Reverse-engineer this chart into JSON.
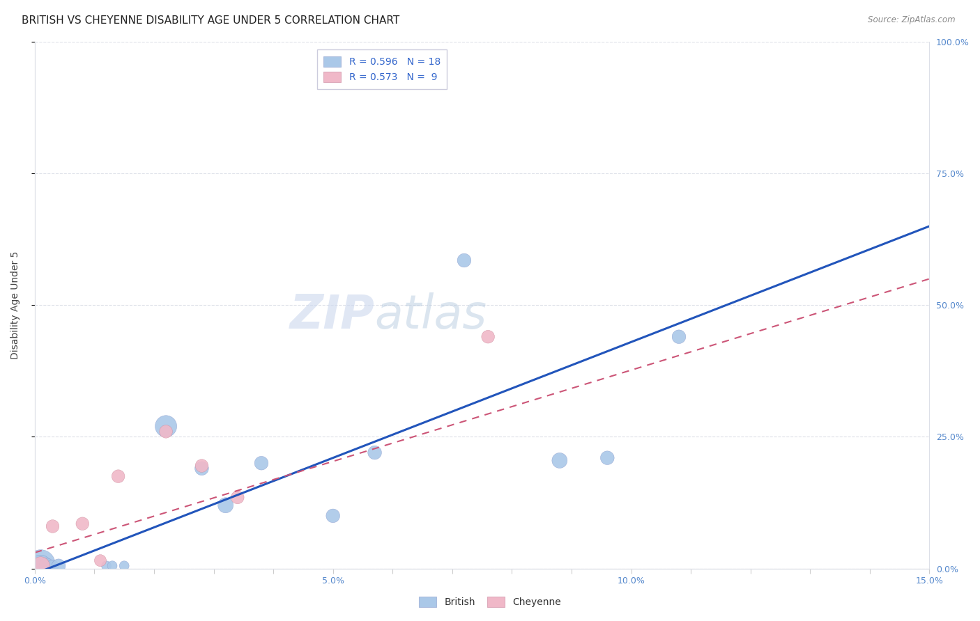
{
  "title": "BRITISH VS CHEYENNE DISABILITY AGE UNDER 5 CORRELATION CHART",
  "source": "Source: ZipAtlas.com",
  "ylabel": "Disability Age Under 5",
  "x_min": 0.0,
  "x_max": 0.15,
  "y_min": 0.0,
  "y_max": 1.0,
  "british_R": 0.596,
  "british_N": 18,
  "cheyenne_R": 0.573,
  "cheyenne_N": 9,
  "british_color": "#aac8e8",
  "british_line_color": "#2255bb",
  "cheyenne_color": "#f0b8c8",
  "cheyenne_line_color": "#cc5577",
  "british_points_x": [
    0.001,
    0.001,
    0.002,
    0.003,
    0.004,
    0.012,
    0.013,
    0.015,
    0.022,
    0.028,
    0.032,
    0.038,
    0.05,
    0.057,
    0.072,
    0.088,
    0.096,
    0.108
  ],
  "british_points_y": [
    0.008,
    0.005,
    0.005,
    0.005,
    0.005,
    0.005,
    0.005,
    0.005,
    0.27,
    0.19,
    0.12,
    0.2,
    0.1,
    0.22,
    0.585,
    0.205,
    0.21,
    0.44
  ],
  "british_sizes": [
    900,
    500,
    250,
    150,
    200,
    100,
    100,
    100,
    500,
    200,
    250,
    200,
    200,
    200,
    200,
    250,
    200,
    200
  ],
  "cheyenne_points_x": [
    0.001,
    0.003,
    0.008,
    0.011,
    0.014,
    0.022,
    0.028,
    0.034,
    0.076
  ],
  "cheyenne_points_y": [
    0.005,
    0.08,
    0.085,
    0.015,
    0.175,
    0.26,
    0.195,
    0.135,
    0.44
  ],
  "cheyenne_sizes": [
    350,
    180,
    180,
    150,
    180,
    180,
    180,
    180,
    180
  ],
  "british_trend": [
    -0.01,
    0.65
  ],
  "cheyenne_trend": [
    0.03,
    0.55
  ],
  "background_color": "#ffffff",
  "grid_color": "#dde0e8",
  "title_fontsize": 11,
  "axis_label_fontsize": 10,
  "tick_fontsize": 9,
  "legend_fontsize": 10
}
